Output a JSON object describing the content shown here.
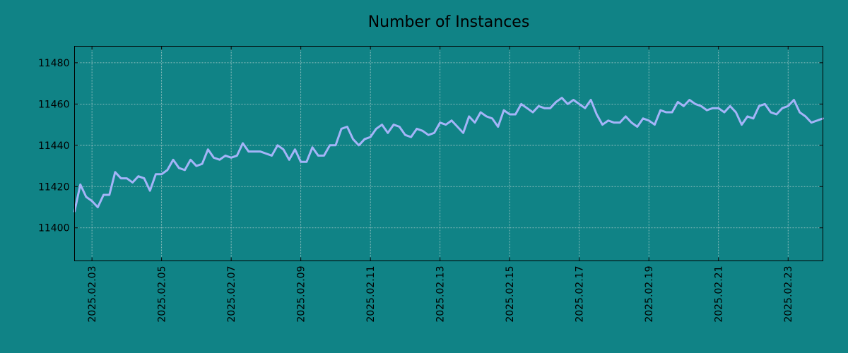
{
  "colors": {
    "background": "#108386",
    "line": "#a4b4f8",
    "axes": "#000000"
  },
  "chart_data": {
    "type": "line",
    "title": "Number of Instances",
    "xlabel": "",
    "ylabel": "",
    "x_start": "2025-02-02 12:00",
    "x_end": "2025-02-24 00:00",
    "x_ticks": [
      "2025.02.03",
      "2025.02.05",
      "2025.02.07",
      "2025.02.09",
      "2025.02.11",
      "2025.02.13",
      "2025.02.15",
      "2025.02.17",
      "2025.02.19",
      "2025.02.21",
      "2025.02.23"
    ],
    "y_ticks": [
      11400,
      11420,
      11440,
      11460,
      11480
    ],
    "ylim": [
      11384,
      11488
    ],
    "grid": true,
    "series": [
      {
        "values": [
          11408,
          11421,
          11415,
          11413,
          11410,
          11416,
          11416,
          11427,
          11424,
          11424,
          11422,
          11425,
          11424,
          11418,
          11426,
          11426,
          11428,
          11433,
          11429,
          11428,
          11433,
          11430,
          11431,
          11438,
          11434,
          11433,
          11435,
          11434,
          11435,
          11441,
          11437,
          11437,
          11437,
          11436,
          11435,
          11440,
          11438,
          11433,
          11438,
          11432,
          11432,
          11439,
          11435,
          11435,
          11440,
          11440,
          11448,
          11449,
          11443,
          11440,
          11443,
          11444,
          11448,
          11450,
          11446,
          11450,
          11449,
          11445,
          11444,
          11448,
          11447,
          11445,
          11446,
          11451,
          11450,
          11452,
          11449,
          11446,
          11454,
          11451,
          11456,
          11454,
          11453,
          11449,
          11457,
          11455,
          11455,
          11460,
          11458,
          11456,
          11459,
          11458,
          11458,
          11461,
          11463,
          11460,
          11462,
          11460,
          11458,
          11462,
          11455,
          11450,
          11452,
          11451,
          11451,
          11454,
          11451,
          11449,
          11453,
          11452,
          11450,
          11457,
          11456,
          11456,
          11461,
          11459,
          11462,
          11460,
          11459,
          11457,
          11458,
          11458,
          11456,
          11459,
          11456,
          11450,
          11454,
          11453,
          11459,
          11460,
          11456,
          11455,
          11458,
          11459,
          11462,
          11456,
          11454,
          11451,
          11452,
          11453
        ]
      }
    ]
  }
}
